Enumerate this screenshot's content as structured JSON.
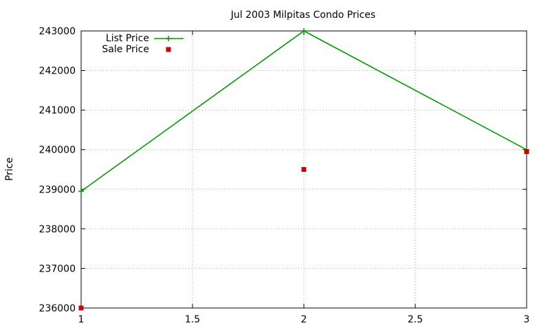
{
  "chart_data": {
    "type": "line",
    "title": "Jul 2003 Milpitas Condo Prices",
    "xlabel": "",
    "ylabel": "Price",
    "xlim": [
      1,
      3
    ],
    "ylim": [
      236000,
      243000
    ],
    "x_ticks": [
      "1",
      "1.5",
      "2",
      "2.5",
      "3"
    ],
    "y_ticks": [
      "236000",
      "237000",
      "238000",
      "239000",
      "240000",
      "241000",
      "242000",
      "243000"
    ],
    "grid": true,
    "legend_position": "top-left",
    "series": [
      {
        "name": "List Price",
        "style": "linespoints",
        "marker": "plus",
        "color": "#009900",
        "points": [
          {
            "x": 1,
            "y": 238950
          },
          {
            "x": 2,
            "y": 243000
          },
          {
            "x": 3,
            "y": 240000
          }
        ]
      },
      {
        "name": "Sale Price",
        "style": "points",
        "marker": "square",
        "color": "#cc0000",
        "points": [
          {
            "x": 1,
            "y": 236000
          },
          {
            "x": 2,
            "y": 239500
          },
          {
            "x": 3,
            "y": 239950
          }
        ]
      }
    ]
  }
}
